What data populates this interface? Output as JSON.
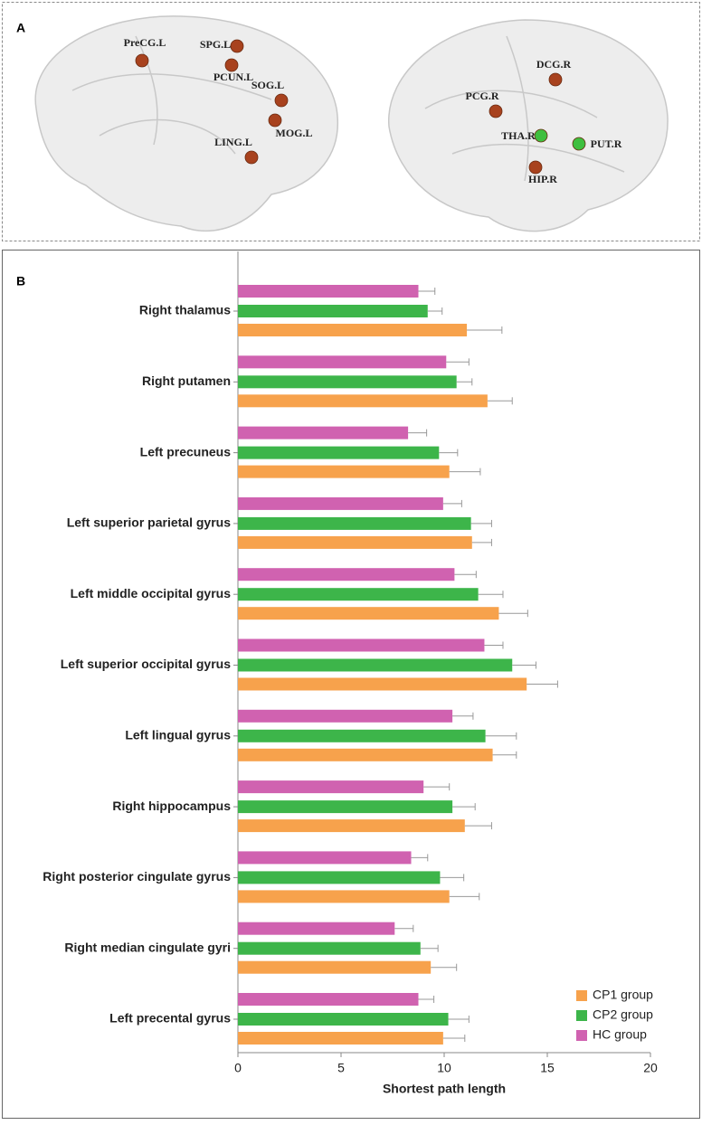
{
  "panel_a": {
    "label": "A",
    "nodes": [
      {
        "label": "PreCG.L",
        "color": "#a8421e"
      },
      {
        "label": "SPG.L",
        "color": "#a8421e"
      },
      {
        "label": "PCUN.L",
        "color": "#a8421e"
      },
      {
        "label": "SOG.L",
        "color": "#a8421e"
      },
      {
        "label": "MOG.L",
        "color": "#a8421e"
      },
      {
        "label": "LING.L",
        "color": "#a8421e"
      },
      {
        "label": "DCG.R",
        "color": "#a8421e"
      },
      {
        "label": "PCG.R",
        "color": "#a8421e"
      },
      {
        "label": "THA.R",
        "color": "#3fbf3f"
      },
      {
        "label": "PUT.R",
        "color": "#3fbf3f"
      },
      {
        "label": "HIP.R",
        "color": "#a8421e"
      }
    ]
  },
  "chart_data": {
    "type": "hbar",
    "panel_label": "B",
    "x_label": "Shortest path length",
    "categories": [
      "Right thalamus",
      "Right putamen",
      "Left precuneus",
      "Left superior parietal gyrus",
      "Left middle occipital gyrus",
      "Left superior occipital gyrus",
      "Left lingual gyrus",
      "Right hippocampus",
      "Right posterior cingulate gyrus",
      "Right median cingulate gyri",
      "Left precental gyrus"
    ],
    "series": [
      {
        "name": "CP1 group",
        "color": "#f7a24c",
        "values": [
          11.1,
          12.1,
          10.25,
          11.35,
          12.65,
          14.0,
          12.35,
          11.0,
          10.25,
          9.35,
          9.95
        ],
        "errors": [
          1.7,
          1.2,
          1.5,
          0.95,
          1.4,
          1.5,
          1.15,
          1.3,
          1.45,
          1.25,
          1.05
        ]
      },
      {
        "name": "CP2 group",
        "color": "#3db54a",
        "values": [
          9.2,
          10.6,
          9.75,
          11.3,
          11.65,
          13.3,
          12.0,
          10.4,
          9.8,
          8.85,
          10.2
        ],
        "errors": [
          0.7,
          0.75,
          0.9,
          1.0,
          1.2,
          1.15,
          1.5,
          1.1,
          1.15,
          0.85,
          1.0
        ]
      },
      {
        "name": "HC group",
        "color": "#d062b0",
        "values": [
          8.75,
          10.1,
          8.25,
          9.95,
          10.5,
          11.95,
          10.4,
          9.0,
          8.4,
          7.6,
          8.75
        ],
        "errors": [
          0.8,
          1.1,
          0.9,
          0.9,
          1.05,
          0.9,
          1.0,
          1.25,
          0.8,
          0.9,
          0.75
        ]
      }
    ],
    "xlim": [
      0,
      20
    ],
    "xticks": [
      0,
      5,
      10,
      15,
      20
    ],
    "legend": "lower right"
  }
}
